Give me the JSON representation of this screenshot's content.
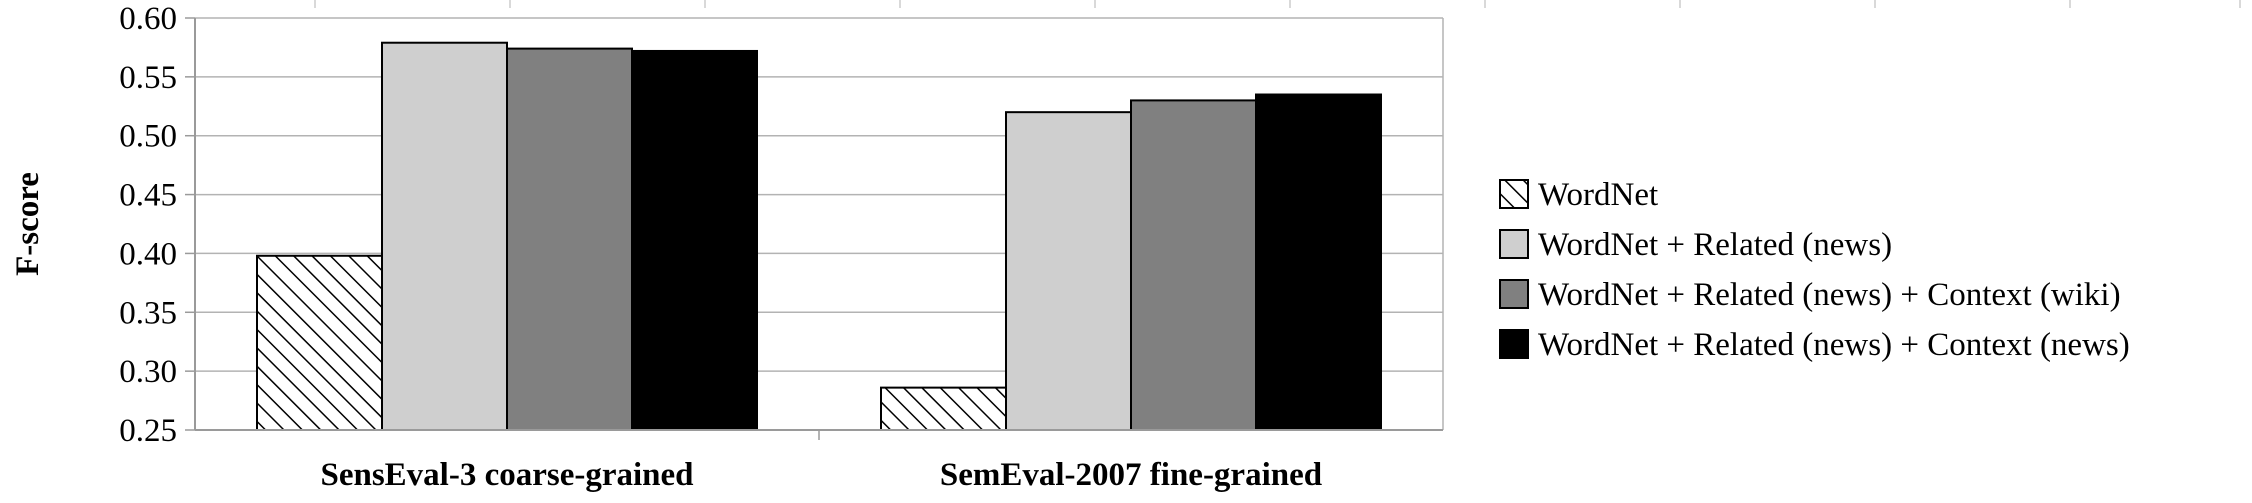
{
  "chart_data": {
    "type": "bar",
    "ylabel": "F-score",
    "xlabel": "",
    "ylim": [
      0.25,
      0.6
    ],
    "yticks": [
      "0.25",
      "0.30",
      "0.35",
      "0.40",
      "0.45",
      "0.50",
      "0.55",
      "0.60"
    ],
    "grid": true,
    "legend_position": "right",
    "categories": [
      "SensEval-3 coarse-grained",
      "SemEval-2007 fine-grained"
    ],
    "series": [
      {
        "name": "WordNet",
        "values": [
          0.398,
          0.286
        ],
        "fill": "hatched",
        "color": "#000000"
      },
      {
        "name": "WordNet + Related (news)",
        "values": [
          0.579,
          0.52
        ],
        "fill": "solid",
        "color": "#cfcfcf"
      },
      {
        "name": "WordNet + Related (news) + Context (wiki)",
        "values": [
          0.574,
          0.53
        ],
        "fill": "solid",
        "color": "#808080"
      },
      {
        "name": "WordNet + Related (news) + Context (news)",
        "values": [
          0.572,
          0.535
        ],
        "fill": "solid",
        "color": "#000000"
      }
    ]
  }
}
